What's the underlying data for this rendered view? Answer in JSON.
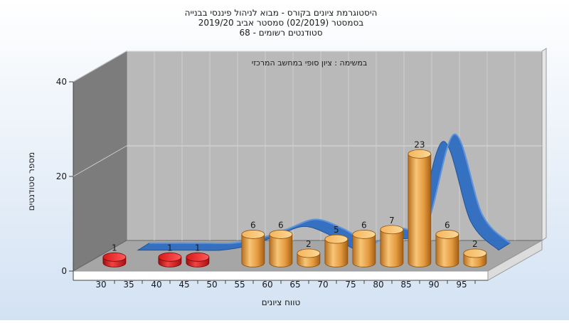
{
  "chart_data": {
    "type": "bar",
    "title": [
      "היסטוגרמת ציונים בקורס - מבוא לניהול פיננסי בבנייה",
      "בסמסטר  (02/2019)  סמסטר אביב 2019/20",
      "סטודנטים רשומים - 68"
    ],
    "annotation": "במשימה : ציון סופי במחשב המרכזי",
    "xlabel": "טווח ציונים",
    "ylabel": "מספר סטודנטים",
    "ylim": [
      0,
      40
    ],
    "yticks": [
      0,
      20,
      40
    ],
    "xticks": [
      30,
      35,
      40,
      45,
      50,
      55,
      60,
      65,
      70,
      75,
      80,
      85,
      90,
      95
    ],
    "grid": true,
    "legend": "none",
    "series": [
      {
        "kind": "bars",
        "x": [
          30,
          40,
          45,
          55,
          60,
          65,
          70,
          75,
          80,
          85,
          90,
          95
        ],
        "values": [
          1,
          1,
          1,
          6,
          6,
          2,
          5,
          6,
          7,
          23,
          6,
          2
        ],
        "labels": [
          "1",
          "1",
          "1",
          "6",
          "6",
          "2",
          "5",
          "6",
          "7",
          "23",
          "6",
          "2"
        ]
      },
      {
        "kind": "curve",
        "x": [
          30,
          35,
          40,
          45,
          50,
          55,
          60,
          65,
          70,
          75,
          80,
          85,
          90,
          95
        ],
        "values": [
          0,
          0,
          0,
          0,
          1,
          3,
          5,
          3,
          0,
          3,
          4,
          23,
          6,
          0
        ]
      }
    ],
    "colors": {
      "background_top": "#ffffff",
      "background_bottom": "#d3e2f3",
      "back_wall": "#b8b8b8",
      "side_wall": "#7a7a7a",
      "floor": "#a8a8a8",
      "bar_low": "#e32020",
      "bar_high": "#e8a24a",
      "curve": "#2f6ec2",
      "text": "#1a1a1a"
    }
  }
}
